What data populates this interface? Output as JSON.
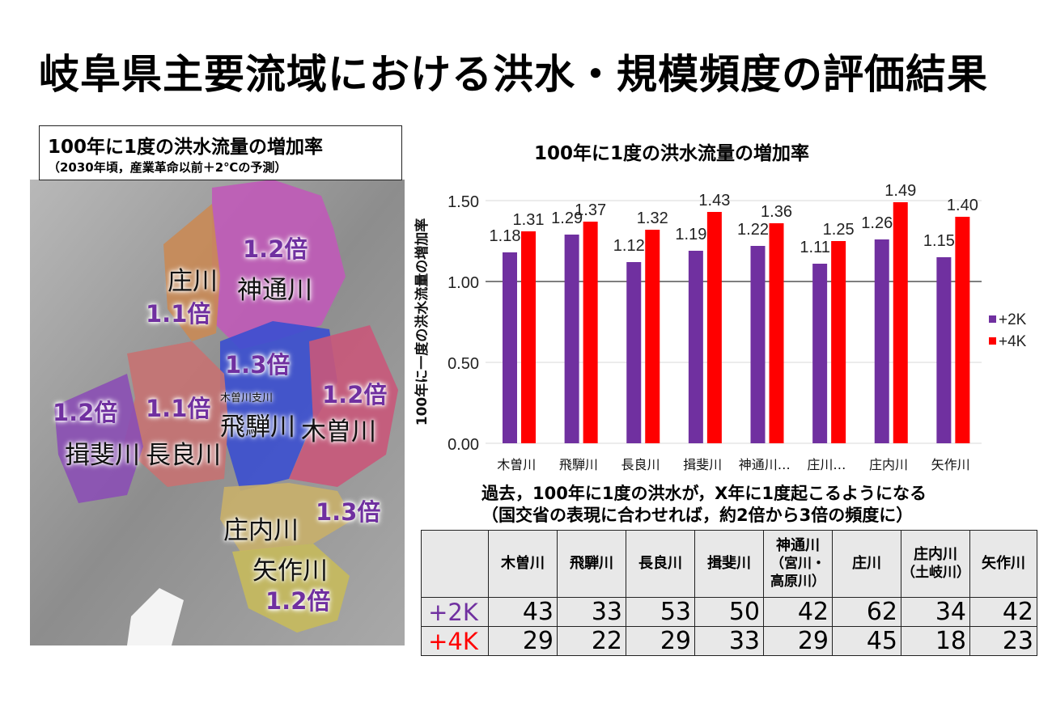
{
  "title": "岐阜県主要流域における洪水・規模頻度の評価結果",
  "map": {
    "legend_line1": "100年に1度の洪水流量の増加率",
    "legend_line2": "（2030年頃，産業革命以前＋2℃の予測）",
    "labels": [
      {
        "river": "神通川",
        "ratio": "1.2倍"
      },
      {
        "river": "庄川",
        "ratio": "1.1倍"
      },
      {
        "river": "飛騨川",
        "ratio": "1.3倍",
        "sub": "木曽川支川"
      },
      {
        "river": "木曽川",
        "ratio": "1.2倍"
      },
      {
        "river": "揖斐川",
        "ratio": "1.2倍"
      },
      {
        "river": "長良川",
        "ratio": "1.1倍"
      },
      {
        "river": "庄内川",
        "ratio": "1.3倍"
      },
      {
        "river": "矢作川",
        "ratio": "1.2倍"
      }
    ]
  },
  "chart_data": {
    "type": "bar",
    "title": "100年に1度の洪水流量の増加率",
    "ylabel": "100年に一度の洪水流量の増加率",
    "xlabel": "",
    "ylim": [
      0,
      1.5
    ],
    "yticks": [
      "0.00",
      "0.50",
      "1.00",
      "1.50"
    ],
    "categories": [
      "木曽川",
      "飛騨川",
      "長良川",
      "揖斐川",
      "神通川…",
      "庄川…",
      "庄内川",
      "矢作川"
    ],
    "series": [
      {
        "name": "+2K",
        "color": "#7030a0",
        "values": [
          1.18,
          1.29,
          1.12,
          1.19,
          1.22,
          1.11,
          1.26,
          1.15
        ]
      },
      {
        "name": "+4K",
        "color": "#ff0000",
        "values": [
          1.31,
          1.37,
          1.32,
          1.43,
          1.36,
          1.25,
          1.49,
          1.4
        ]
      }
    ],
    "legend": "right",
    "reference_line": 1.0
  },
  "note": {
    "line1": "過去，100年に1度の洪水が，X年に1度起こるようになる",
    "line2": "（国交省の表現に合わせれば，約2倍から3倍の頻度に）"
  },
  "table": {
    "headers": [
      [
        "木曽川"
      ],
      [
        "飛騨川"
      ],
      [
        "長良川"
      ],
      [
        "揖斐川"
      ],
      [
        "神通川",
        "（宮川・",
        "高原川）"
      ],
      [
        "庄川"
      ],
      [
        "庄内川",
        "（土岐川）"
      ],
      [
        "矢作川"
      ]
    ],
    "rows": [
      {
        "label": "+2K",
        "color": "#7030a0",
        "values": [
          "43",
          "33",
          "53",
          "50",
          "42",
          "62",
          "34",
          "42"
        ]
      },
      {
        "label": "+4K",
        "color": "#ff0000",
        "values": [
          "29",
          "22",
          "29",
          "33",
          "29",
          "45",
          "18",
          "23"
        ]
      }
    ]
  }
}
